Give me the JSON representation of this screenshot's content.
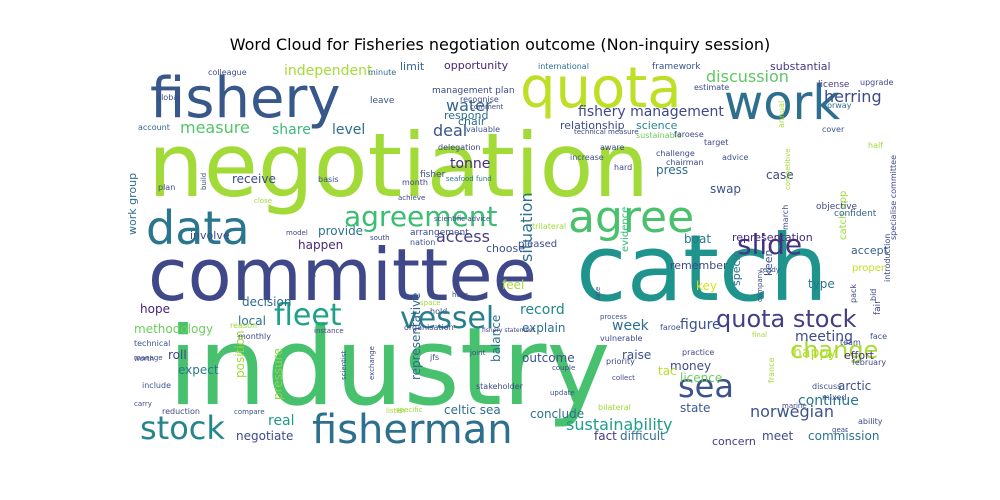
{
  "chart_data": {
    "type": "wordcloud",
    "title": "Word Cloud for Fisheries negotiation outcome (Non-inquiry session)",
    "words": [
      {
        "text": "negotiation",
        "color": "#a2da37"
      },
      {
        "text": "industry",
        "color": "#48c16e"
      },
      {
        "text": "catch",
        "color": "#1f948c"
      },
      {
        "text": "committee",
        "color": "#3f4889"
      },
      {
        "text": "fishery",
        "color": "#38588c"
      },
      {
        "text": "quota",
        "color": "#bddf26"
      },
      {
        "text": "work",
        "color": "#2e6f8e"
      },
      {
        "text": "data",
        "color": "#2a768e"
      },
      {
        "text": "agree",
        "color": "#4ac16d"
      },
      {
        "text": "fisherman",
        "color": "#2d708e"
      },
      {
        "text": "agreement",
        "color": "#3dbc74"
      },
      {
        "text": "fleet",
        "color": "#1fa187"
      },
      {
        "text": "vessel",
        "color": "#277f8e"
      },
      {
        "text": "stock",
        "color": "#25858e"
      },
      {
        "text": "sea",
        "color": "#3b528b"
      },
      {
        "text": "slide",
        "color": "#46327e"
      },
      {
        "text": "quota stock",
        "color": "#433e85"
      },
      {
        "text": "change",
        "color": "#a8db34"
      },
      {
        "text": "sustainability",
        "color": "#1f9e89"
      },
      {
        "text": "norwegian",
        "color": "#3b528b"
      },
      {
        "text": "fishery management",
        "color": "#3e4989"
      },
      {
        "text": "discussion",
        "color": "#5ec962"
      },
      {
        "text": "water",
        "color": "#32658e"
      },
      {
        "text": "measure",
        "color": "#52c569"
      },
      {
        "text": "independent",
        "color": "#a5db36"
      },
      {
        "text": "deal",
        "color": "#3b528b"
      },
      {
        "text": "situation",
        "color": "#2c728e"
      },
      {
        "text": "access",
        "color": "#433e85"
      },
      {
        "text": "herring",
        "color": "#3e4989"
      },
      {
        "text": "tonne",
        "color": "#472d7b"
      },
      {
        "text": "meeting",
        "color": "#3e4c8a"
      },
      {
        "text": "happy",
        "color": "#b5de2b"
      },
      {
        "text": "continue",
        "color": "#2a778e"
      },
      {
        "text": "real",
        "color": "#1f9a8a"
      },
      {
        "text": "figure",
        "color": "#3b528b"
      },
      {
        "text": "week",
        "color": "#2d708e"
      },
      {
        "text": "record",
        "color": "#24868e"
      },
      {
        "text": "share",
        "color": "#3aba76"
      },
      {
        "text": "level",
        "color": "#2f6c8e"
      },
      {
        "text": "receive",
        "color": "#3e4989"
      },
      {
        "text": "provide",
        "color": "#2c728e"
      },
      {
        "text": "happen",
        "color": "#482576"
      },
      {
        "text": "local",
        "color": "#2d708e"
      },
      {
        "text": "methodology",
        "color": "#6ccd5a"
      },
      {
        "text": "hope",
        "color": "#482173"
      },
      {
        "text": "expect",
        "color": "#2a788e"
      },
      {
        "text": "decision",
        "color": "#31688e"
      },
      {
        "text": "position",
        "color": "#a0da39"
      },
      {
        "text": "pressure",
        "color": "#8bd646"
      },
      {
        "text": "negotiate",
        "color": "#3e4989"
      },
      {
        "text": "celtic sea",
        "color": "#2e6e8e"
      },
      {
        "text": "conclude",
        "color": "#2d718e"
      },
      {
        "text": "outcome",
        "color": "#3b528b"
      },
      {
        "text": "balance",
        "color": "#2b748e"
      },
      {
        "text": "representative",
        "color": "#31688e"
      },
      {
        "text": "explain",
        "color": "#2c728e"
      },
      {
        "text": "money",
        "color": "#3e4c8a"
      },
      {
        "text": "licence",
        "color": "#6ccd5a"
      },
      {
        "text": "tac",
        "color": "#b5de2b"
      },
      {
        "text": "raise",
        "color": "#3b528b"
      },
      {
        "text": "difficult",
        "color": "#2d708e"
      },
      {
        "text": "fact",
        "color": "#443a83"
      },
      {
        "text": "state",
        "color": "#38598c"
      },
      {
        "text": "meet",
        "color": "#3e4a89"
      },
      {
        "text": "commission",
        "color": "#2c738e"
      },
      {
        "text": "concern",
        "color": "#443983"
      },
      {
        "text": "arctic",
        "color": "#3e4c8a"
      },
      {
        "text": "effort",
        "color": "#472f7d"
      },
      {
        "text": "accept",
        "color": "#355f8d"
      },
      {
        "text": "representation",
        "color": "#472d7b"
      },
      {
        "text": "boat",
        "color": "#2a788e"
      },
      {
        "text": "choose",
        "color": "#3b528b"
      },
      {
        "text": "pleased",
        "color": "#3d4d8a"
      },
      {
        "text": "press",
        "color": "#2f6c8e"
      },
      {
        "text": "swap",
        "color": "#3b528b"
      },
      {
        "text": "case",
        "color": "#3e4989"
      },
      {
        "text": "science",
        "color": "#23898e"
      },
      {
        "text": "relationship",
        "color": "#3e4989"
      },
      {
        "text": "respond",
        "color": "#2d708e"
      },
      {
        "text": "chair",
        "color": "#2f6b8e"
      },
      {
        "text": "opportunity",
        "color": "#482475"
      },
      {
        "text": "limit",
        "color": "#32658e"
      },
      {
        "text": "substantial",
        "color": "#443983"
      },
      {
        "text": "work group",
        "color": "#2e6e8e"
      },
      {
        "text": "involve",
        "color": "#3d4e8a"
      },
      {
        "text": "catch app",
        "color": "#9fda3a"
      },
      {
        "text": "remember",
        "color": "#3e4989"
      },
      {
        "text": "feel",
        "color": "#a5db36"
      },
      {
        "text": "keen",
        "color": "#3b528b"
      },
      {
        "text": "specie",
        "color": "#2c728e"
      },
      {
        "text": "key",
        "color": "#d8e219"
      },
      {
        "text": "type",
        "color": "#2a768e"
      },
      {
        "text": "proper",
        "color": "#c2df23"
      },
      {
        "text": "evidence",
        "color": "#35b779"
      },
      {
        "text": "objective",
        "color": "#3e4989"
      },
      {
        "text": "confident",
        "color": "#355f8d"
      },
      {
        "text": "management plan",
        "color": "#3e4989"
      },
      {
        "text": "framework",
        "color": "#3b528b"
      },
      {
        "text": "international",
        "color": "#2c728e"
      },
      {
        "text": "colleague",
        "color": "#3e4989"
      },
      {
        "text": "minute",
        "color": "#31688e"
      },
      {
        "text": "global",
        "color": "#3e4989"
      },
      {
        "text": "leave",
        "color": "#3b528b"
      },
      {
        "text": "account",
        "color": "#31688e"
      },
      {
        "text": "license",
        "color": "#443983"
      },
      {
        "text": "norway",
        "color": "#2e6f8e"
      },
      {
        "text": "upgrade",
        "color": "#3e4989"
      },
      {
        "text": "estimate",
        "color": "#3e4989"
      },
      {
        "text": "annual",
        "color": "#a8db34"
      },
      {
        "text": "sustainable",
        "color": "#6ccd5a"
      },
      {
        "text": "cover",
        "color": "#3b528b"
      },
      {
        "text": "faroese",
        "color": "#3e4989"
      },
      {
        "text": "half",
        "color": "#a0da39"
      },
      {
        "text": "target",
        "color": "#3e4989"
      },
      {
        "text": "challenge",
        "color": "#3e4989"
      },
      {
        "text": "advice",
        "color": "#3b528b"
      },
      {
        "text": "chairman",
        "color": "#3e4989"
      },
      {
        "text": "specialise committee",
        "color": "#3e4989"
      },
      {
        "text": "competitive",
        "color": "#a0da39"
      },
      {
        "text": "increase",
        "color": "#3b528b"
      },
      {
        "text": "aware",
        "color": "#3e4989"
      },
      {
        "text": "hard",
        "color": "#3e4989"
      },
      {
        "text": "month",
        "color": "#3e4989"
      },
      {
        "text": "fisher",
        "color": "#3b528b"
      },
      {
        "text": "seafood fund",
        "color": "#2c728e"
      },
      {
        "text": "delegation",
        "color": "#3e4989"
      },
      {
        "text": "scientific advice",
        "color": "#3e4989"
      },
      {
        "text": "trilateral",
        "color": "#a0da39"
      },
      {
        "text": "arrangement",
        "color": "#3e4989"
      },
      {
        "text": "nation",
        "color": "#3b528b"
      },
      {
        "text": "south",
        "color": "#3e4989"
      },
      {
        "text": "model",
        "color": "#3e4989"
      },
      {
        "text": "close",
        "color": "#a0da39"
      },
      {
        "text": "achieve",
        "color": "#3e4989"
      },
      {
        "text": "build",
        "color": "#3e4989"
      },
      {
        "text": "basis",
        "color": "#3b528b"
      },
      {
        "text": "plan",
        "color": "#3e4989"
      },
      {
        "text": "recognise",
        "color": "#3e4989"
      },
      {
        "text": "comment",
        "color": "#3e4989"
      },
      {
        "text": "valuable",
        "color": "#3b528b"
      },
      {
        "text": "technical measure",
        "color": "#3e4989"
      },
      {
        "text": "march",
        "color": "#3b528b"
      },
      {
        "text": "introduction",
        "color": "#3e4989"
      },
      {
        "text": "bid",
        "color": "#3b528b"
      },
      {
        "text": "pack",
        "color": "#3e4989"
      },
      {
        "text": "fair",
        "color": "#3e4989"
      },
      {
        "text": "face",
        "color": "#3b528b"
      },
      {
        "text": "team",
        "color": "#3e4989"
      },
      {
        "text": "february",
        "color": "#3e4989"
      },
      {
        "text": "mixed",
        "color": "#3b528b"
      },
      {
        "text": "ability",
        "color": "#3e4989"
      },
      {
        "text": "gear",
        "color": "#3e4989"
      },
      {
        "text": "discuss",
        "color": "#3b528b"
      },
      {
        "text": "marine",
        "color": "#3e4989"
      },
      {
        "text": "france",
        "color": "#a0da39"
      },
      {
        "text": "company",
        "color": "#3e4989"
      },
      {
        "text": "ready",
        "color": "#3b528b"
      },
      {
        "text": "practice",
        "color": "#3e4989"
      },
      {
        "text": "final",
        "color": "#a0da39"
      },
      {
        "text": "bilateral",
        "color": "#a0da39"
      },
      {
        "text": "collect",
        "color": "#3e4989"
      },
      {
        "text": "process",
        "color": "#3b528b"
      },
      {
        "text": "priority",
        "color": "#3e4989"
      },
      {
        "text": "vulnerable",
        "color": "#3e4989"
      },
      {
        "text": "faroe",
        "color": "#3b528b"
      },
      {
        "text": "late",
        "color": "#3e4989"
      },
      {
        "text": "couple",
        "color": "#3e4989"
      },
      {
        "text": "update",
        "color": "#3b528b"
      },
      {
        "text": "stakeholder",
        "color": "#3e4989"
      },
      {
        "text": "joint",
        "color": "#3e4989"
      },
      {
        "text": "jfs",
        "color": "#3b528b"
      },
      {
        "text": "fishery statement",
        "color": "#3e4989"
      },
      {
        "text": "organisation",
        "color": "#3e4989"
      },
      {
        "text": "hold",
        "color": "#3b528b"
      },
      {
        "text": "hear",
        "color": "#3e4989"
      },
      {
        "text": "space",
        "color": "#a0da39"
      },
      {
        "text": "specific",
        "color": "#a0da39"
      },
      {
        "text": "listen",
        "color": "#a0da39"
      },
      {
        "text": "exchange",
        "color": "#3e4989"
      },
      {
        "text": "scientist",
        "color": "#3b528b"
      },
      {
        "text": "instance",
        "color": "#3e4989"
      },
      {
        "text": "funding",
        "color": "#3e4989"
      },
      {
        "text": "reason",
        "color": "#a0da39"
      },
      {
        "text": "monthly",
        "color": "#3e4989"
      },
      {
        "text": "technical",
        "color": "#3b528b"
      },
      {
        "text": "manage",
        "color": "#3e4989"
      },
      {
        "text": "worth",
        "color": "#3e4989"
      },
      {
        "text": "include",
        "color": "#3b528b"
      },
      {
        "text": "carry",
        "color": "#3e4989"
      },
      {
        "text": "reduction",
        "color": "#3e4989"
      },
      {
        "text": "compare",
        "color": "#3b528b"
      },
      {
        "text": "roll",
        "color": "#3e4989"
      }
    ]
  }
}
